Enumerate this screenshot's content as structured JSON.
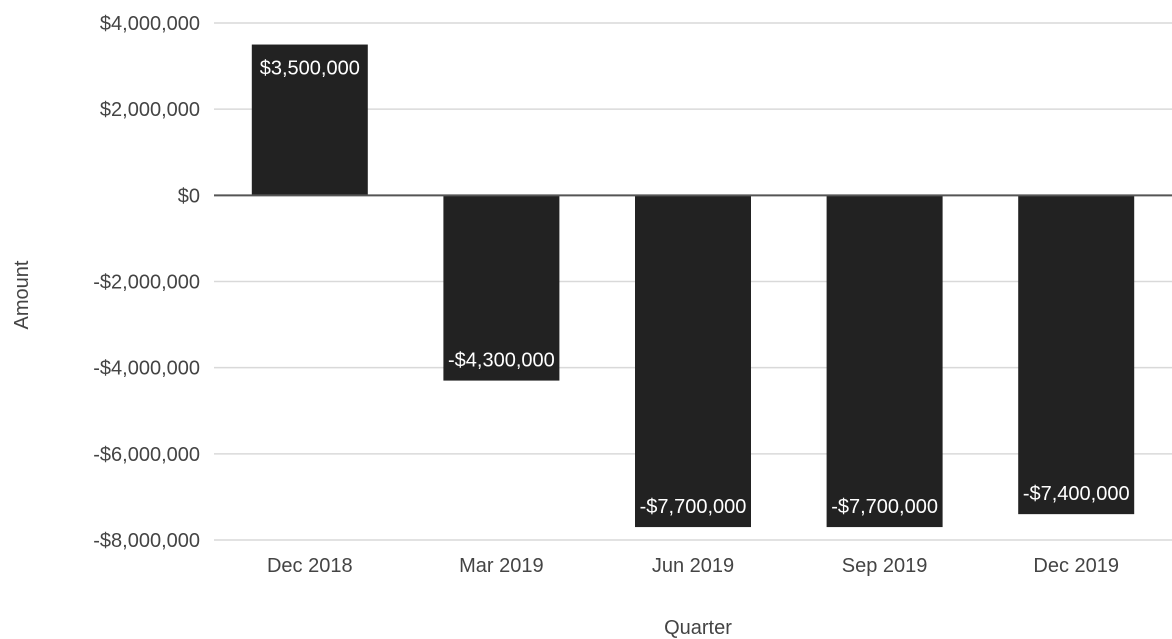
{
  "chart_data": {
    "type": "bar",
    "title": "",
    "xlabel": "Quarter",
    "ylabel": "Amount",
    "categories": [
      "Dec 2018",
      "Mar 2019",
      "Jun 2019",
      "Sep 2019",
      "Dec 2019"
    ],
    "values": [
      3500000,
      -4300000,
      -7700000,
      -7700000,
      -7400000
    ],
    "data_labels": [
      "$3,500,000",
      "-$4,300,000",
      "-$7,700,000",
      "-$7,700,000",
      "-$7,400,000"
    ],
    "ylim": [
      -8000000,
      4000000
    ],
    "yticks": [
      4000000,
      2000000,
      0,
      -2000000,
      -4000000,
      -6000000,
      -8000000
    ],
    "ytick_labels": [
      "$4,000,000",
      "$2,000,000",
      "$0",
      "-$2,000,000",
      "-$4,000,000",
      "-$6,000,000",
      "-$8,000,000"
    ],
    "grid": true,
    "legend": "none",
    "colors": {
      "bar": "#222222",
      "grid": "#d9d9d9",
      "zero_line": "#555555",
      "text": "#444444"
    }
  }
}
